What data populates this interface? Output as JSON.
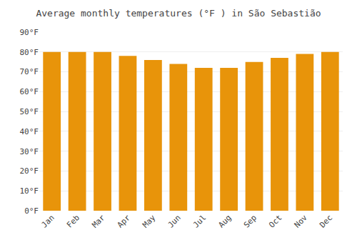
{
  "chart_data": {
    "type": "bar",
    "title": "Average monthly temperatures (°F ) in São Sebastião",
    "categories": [
      "Jan",
      "Feb",
      "Mar",
      "Apr",
      "May",
      "Jun",
      "Jul",
      "Aug",
      "Sep",
      "Oct",
      "Nov",
      "Dec"
    ],
    "values": [
      80,
      80,
      80,
      78,
      76,
      74,
      72,
      72,
      75,
      77,
      79,
      80
    ],
    "color": "#E8940A",
    "ylim": [
      0,
      90
    ],
    "yticks": [
      {
        "value": 0,
        "label": "0°F"
      },
      {
        "value": 10,
        "label": "10°F"
      },
      {
        "value": 20,
        "label": "20°F"
      },
      {
        "value": 30,
        "label": "30°F"
      },
      {
        "value": 40,
        "label": "40°F"
      },
      {
        "value": 50,
        "label": "50°F"
      },
      {
        "value": 60,
        "label": "60°F"
      },
      {
        "value": 70,
        "label": "70°F"
      },
      {
        "value": 80,
        "label": "80°F"
      },
      {
        "value": 90,
        "label": "90°F"
      }
    ],
    "grid": true
  }
}
